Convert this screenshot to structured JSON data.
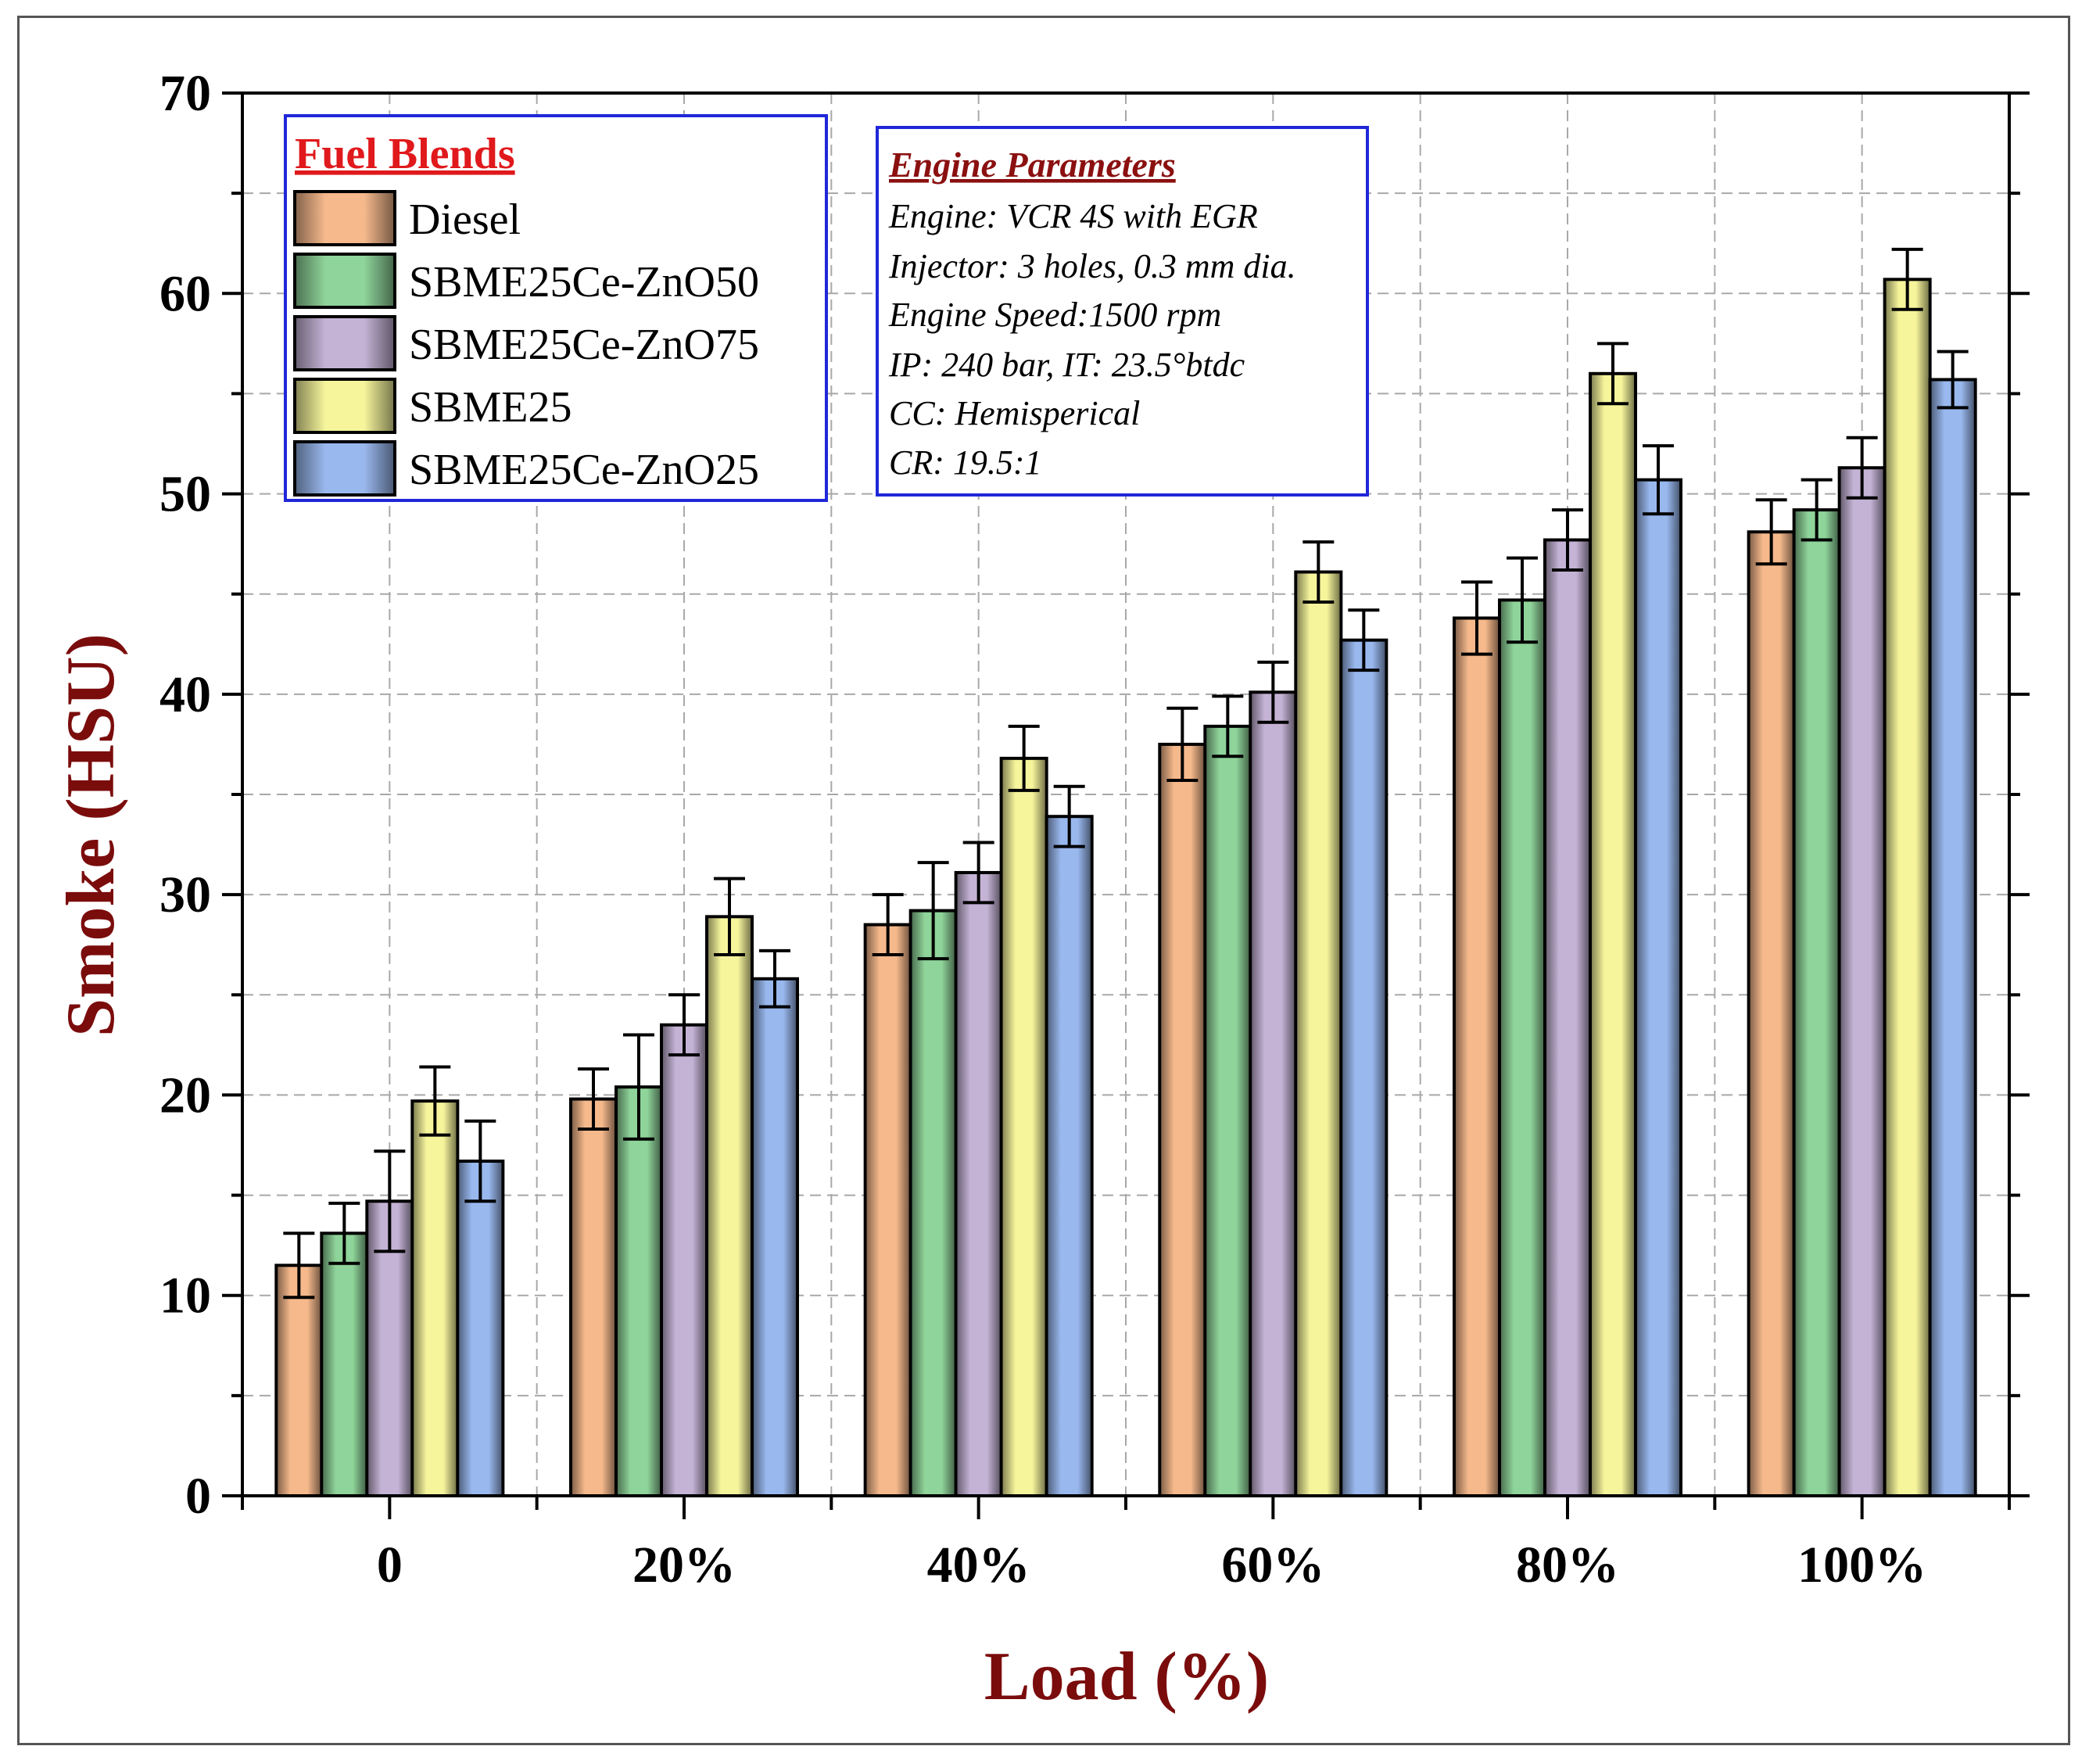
{
  "chart_data": {
    "type": "bar",
    "title": "",
    "xlabel": "Load (%)",
    "ylabel": "Smoke (HSU)",
    "ylim": [
      0,
      70
    ],
    "yticks": [
      "0",
      "10",
      "20",
      "30",
      "40",
      "50",
      "60",
      "70"
    ],
    "categories": [
      "0",
      "20%",
      "40%",
      "60%",
      "80%",
      "100%"
    ],
    "grid": true,
    "series": [
      {
        "name": "Diesel",
        "color": "#f6b98c",
        "values": [
          11.5,
          19.8,
          28.5,
          37.5,
          43.8,
          48.1
        ],
        "errors": [
          1.6,
          1.5,
          1.5,
          1.8,
          1.8,
          1.6
        ]
      },
      {
        "name": "SBME25Ce-ZnO50",
        "color": "#8fd49a",
        "values": [
          13.1,
          20.4,
          29.2,
          38.4,
          44.7,
          49.2
        ],
        "errors": [
          1.5,
          2.6,
          2.4,
          1.5,
          2.1,
          1.5
        ]
      },
      {
        "name": "SBME25Ce-ZnO75",
        "color": "#c5b3d6",
        "values": [
          14.7,
          23.5,
          31.1,
          40.1,
          47.7,
          51.3
        ],
        "errors": [
          2.5,
          1.5,
          1.5,
          1.5,
          1.5,
          1.5
        ]
      },
      {
        "name": "SBME25",
        "color": "#f6f59c",
        "values": [
          19.7,
          28.9,
          36.8,
          46.1,
          56.0,
          60.7
        ],
        "errors": [
          1.7,
          1.9,
          1.6,
          1.5,
          1.5,
          1.5
        ]
      },
      {
        "name": "SBME25Ce-ZnO25",
        "color": "#99b8ee",
        "values": [
          16.7,
          25.8,
          33.9,
          42.7,
          50.7,
          55.7
        ],
        "errors": [
          2.0,
          1.4,
          1.5,
          1.5,
          1.7,
          1.4
        ]
      }
    ],
    "legend": {
      "title": "Fuel Blends",
      "placement": "top-left"
    },
    "annotation": {
      "title": "Engine Parameters",
      "lines": [
        "Engine: VCR 4S with EGR",
        "Injector: 3 holes, 0.3 mm dia.",
        "Engine Speed:1500 rpm",
        "IP: 240 bar, IT: 23.5°btdc",
        "CC: Hemisperical",
        "CR: 19.5:1"
      ]
    }
  }
}
